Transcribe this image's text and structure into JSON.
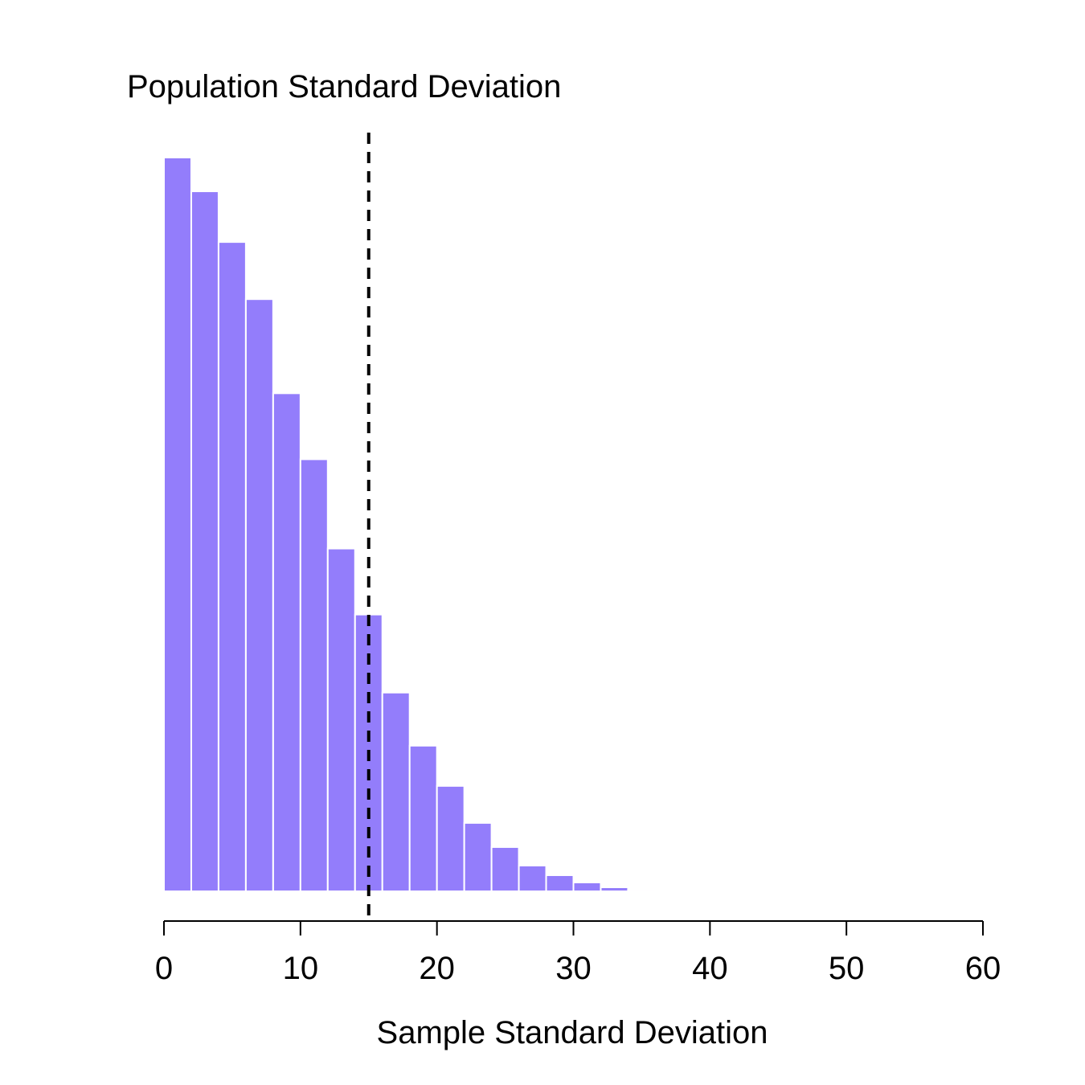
{
  "chart_data": {
    "type": "bar",
    "title": "Population Standard Deviation",
    "xlabel": "Sample Standard Deviation",
    "ylabel": "",
    "xlim": [
      0,
      60
    ],
    "x_ticks": [
      "0",
      "10",
      "20",
      "30",
      "40",
      "50",
      "60"
    ],
    "bin_width": 2,
    "bins": [
      {
        "x0": 0,
        "x1": 2,
        "count": 912
      },
      {
        "x0": 2,
        "x1": 4,
        "count": 870
      },
      {
        "x0": 4,
        "x1": 6,
        "count": 807
      },
      {
        "x0": 6,
        "x1": 8,
        "count": 736
      },
      {
        "x0": 8,
        "x1": 10,
        "count": 619
      },
      {
        "x0": 10,
        "x1": 12,
        "count": 537
      },
      {
        "x0": 12,
        "x1": 14,
        "count": 426
      },
      {
        "x0": 14,
        "x1": 16,
        "count": 344
      },
      {
        "x0": 16,
        "x1": 18,
        "count": 247
      },
      {
        "x0": 18,
        "x1": 20,
        "count": 181
      },
      {
        "x0": 20,
        "x1": 22,
        "count": 131
      },
      {
        "x0": 22,
        "x1": 24,
        "count": 85
      },
      {
        "x0": 24,
        "x1": 26,
        "count": 55
      },
      {
        "x0": 26,
        "x1": 28,
        "count": 32
      },
      {
        "x0": 28,
        "x1": 30,
        "count": 20
      },
      {
        "x0": 30,
        "x1": 32,
        "count": 11
      },
      {
        "x0": 32,
        "x1": 34,
        "count": 5
      },
      {
        "x0": 34,
        "x1": 36,
        "count": 2
      },
      {
        "x0": 36,
        "x1": 38,
        "count": 1
      }
    ],
    "reference_line": {
      "x": 15,
      "style": "dashed"
    },
    "y_axis_shown": false,
    "grid": false,
    "colors": {
      "bar": "#937DFB",
      "bar_edge": "#FFFFFF",
      "line": "#000000",
      "background": "#FFFFFF"
    }
  }
}
